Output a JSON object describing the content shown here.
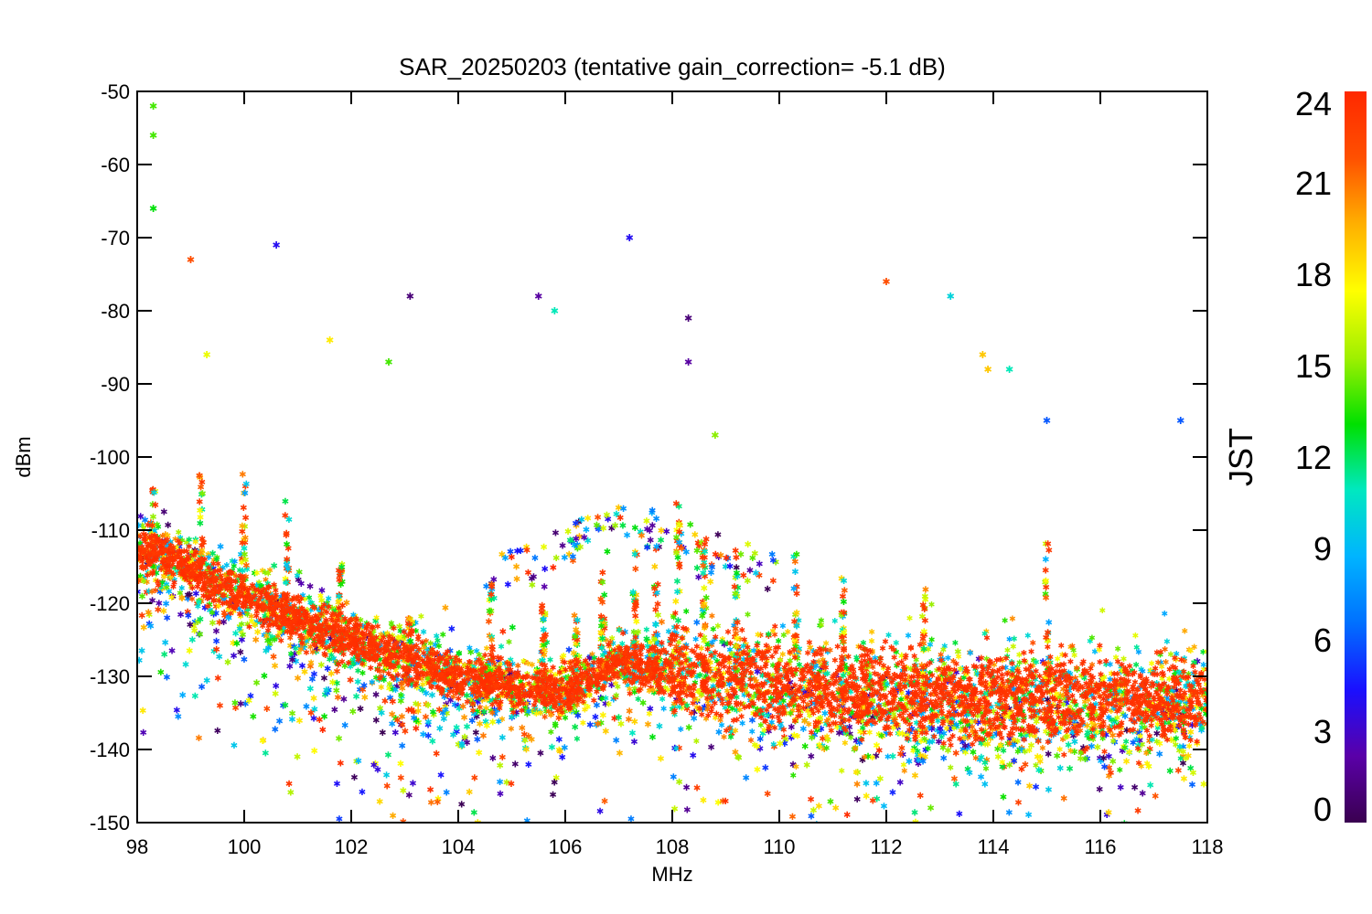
{
  "chart_data": {
    "type": "scatter",
    "title": "SAR_20250203 (tentative gain_correction= -5.1 dB)",
    "xlabel": "MHz",
    "ylabel": "dBm",
    "xlim": [
      98,
      118
    ],
    "ylim": [
      -150,
      -50
    ],
    "x_ticks": [
      98,
      100,
      102,
      104,
      106,
      108,
      110,
      112,
      114,
      116,
      118
    ],
    "y_ticks": [
      -50,
      -60,
      -70,
      -80,
      -90,
      -100,
      -110,
      -120,
      -130,
      -140,
      -150
    ],
    "grid": false,
    "colorbar": {
      "label": "JST",
      "range": [
        0,
        24
      ],
      "ticks": [
        24,
        21,
        18,
        15,
        12,
        9,
        6,
        3,
        0
      ],
      "colormap": [
        "#3a0050",
        "#5a00a8",
        "#1a10ff",
        "#0070ff",
        "#00b4ff",
        "#00e8c0",
        "#00e000",
        "#a0f000",
        "#ffff00",
        "#ffb000",
        "#ff5000",
        "#ff2800"
      ]
    },
    "dominant_series": {
      "name": "",
      "color_value": 23,
      "description_values": "baseline floor from about -112 dBm at 98 MHz to about -133 dBm at 118 MHz"
    },
    "baseline": {
      "x": [
        98,
        100,
        102,
        104,
        105,
        106,
        107,
        108,
        110,
        112,
        114,
        116,
        118
      ],
      "y": [
        -112,
        -119,
        -125,
        -130,
        -131,
        -132,
        -128,
        -129,
        -131,
        -132,
        -133,
        -133,
        -133
      ]
    },
    "peaks": {
      "x": [
        98.3,
        99.2,
        100.0,
        100.8,
        101.8,
        103.1,
        104.6,
        105.6,
        106.2,
        106.7,
        107.3,
        107.7,
        108.1,
        108.6,
        109.2,
        110.3,
        111.2,
        112.7,
        115.0
      ],
      "y": [
        -104,
        -101,
        -102,
        -106,
        -114,
        -122,
        -117,
        -120,
        -121,
        -115,
        -113,
        -112,
        -106,
        -110,
        -112,
        -113,
        -116,
        -118,
        -111
      ]
    },
    "hump": {
      "x": [
        104.5,
        105.5,
        106.5,
        107.0,
        107.5,
        108.0,
        109.0,
        110.0
      ],
      "y": [
        -117,
        -114,
        -110,
        -109,
        -110,
        -112,
        -114,
        -116
      ]
    },
    "outliers": {
      "x": [
        98.3,
        98.3,
        98.3,
        99.0,
        100.6,
        103.1,
        105.5,
        105.8,
        107.2,
        108.3,
        108.3,
        112.0,
        113.2,
        113.8,
        113.9,
        114.3,
        115.0,
        117.5,
        108.8,
        101.6,
        102.7,
        99.3
      ],
      "y": [
        -52,
        -56,
        -66,
        -73,
        -71,
        -78,
        -78,
        -80,
        -70,
        -81,
        -87,
        -76,
        -78,
        -86,
        -88,
        -88,
        -95,
        -95,
        -97,
        -84,
        -87,
        -86
      ],
      "color_values": [
        14,
        14,
        13,
        22,
        4,
        1,
        2,
        11,
        4,
        1,
        2,
        22,
        10,
        19,
        19,
        11,
        6,
        6,
        15,
        18,
        14,
        17
      ]
    }
  }
}
